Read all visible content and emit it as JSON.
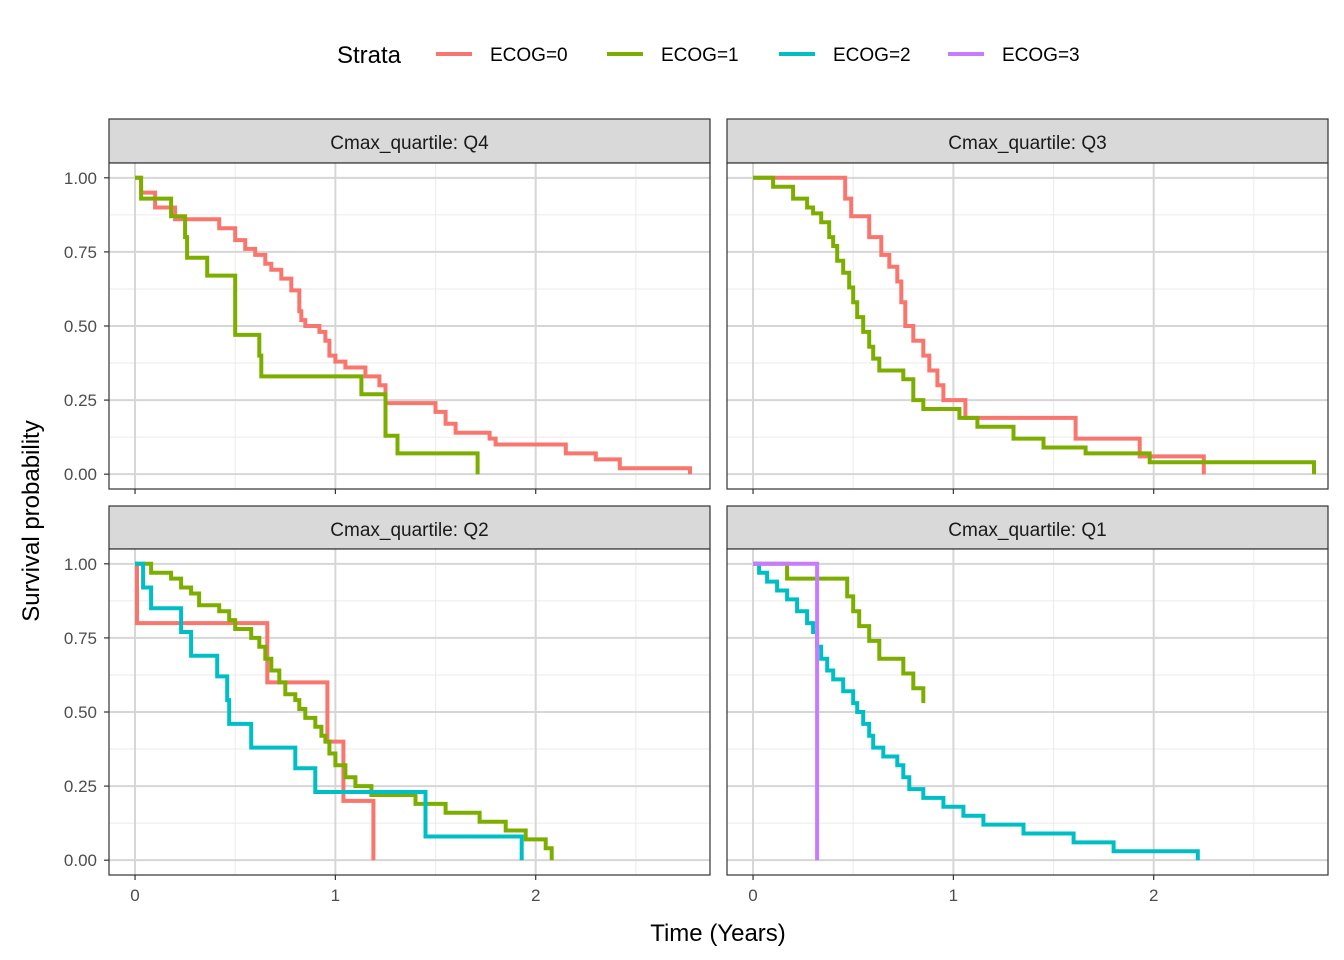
{
  "chart_data": {
    "type": "line",
    "step": true,
    "xlabel": "Time (Years)",
    "ylabel": "Survival probability",
    "xlim": [
      -0.13,
      2.87
    ],
    "ylim": [
      -0.05,
      1.05
    ],
    "x_ticks": [
      0,
      1,
      2
    ],
    "x_tick_labels": [
      "0",
      "1",
      "2"
    ],
    "y_ticks": [
      0,
      0.25,
      0.5,
      0.75,
      1
    ],
    "y_tick_labels": [
      "0.00",
      "0.25",
      "0.50",
      "0.75",
      "1.00"
    ],
    "grid": true,
    "legend": {
      "title": "Strata",
      "position": "top",
      "entries": [
        {
          "name": "ECOG=0",
          "color": "#F8766D"
        },
        {
          "name": "ECOG=1",
          "color": "#7CAE00"
        },
        {
          "name": "ECOG=2",
          "color": "#00BFC4"
        },
        {
          "name": "ECOG=3",
          "color": "#C77CFF"
        }
      ]
    },
    "facets": [
      {
        "label": "Cmax_quartile: Q4",
        "series": [
          {
            "name": "ECOG=0",
            "color": "#F8766D",
            "points": [
              [
                0,
                1.0
              ],
              [
                0.03,
                0.95
              ],
              [
                0.1,
                0.9
              ],
              [
                0.2,
                0.86
              ],
              [
                0.42,
                0.83
              ],
              [
                0.5,
                0.79
              ],
              [
                0.55,
                0.76
              ],
              [
                0.6,
                0.74
              ],
              [
                0.65,
                0.71
              ],
              [
                0.68,
                0.69
              ],
              [
                0.73,
                0.66
              ],
              [
                0.78,
                0.62
              ],
              [
                0.82,
                0.55
              ],
              [
                0.83,
                0.52
              ],
              [
                0.85,
                0.5
              ],
              [
                0.92,
                0.48
              ],
              [
                0.95,
                0.45
              ],
              [
                0.97,
                0.4
              ],
              [
                1.0,
                0.38
              ],
              [
                1.05,
                0.36
              ],
              [
                1.15,
                0.33
              ],
              [
                1.22,
                0.3
              ],
              [
                1.25,
                0.24
              ],
              [
                1.5,
                0.21
              ],
              [
                1.55,
                0.17
              ],
              [
                1.6,
                0.14
              ],
              [
                1.77,
                0.12
              ],
              [
                1.8,
                0.1
              ],
              [
                2.15,
                0.07
              ],
              [
                2.3,
                0.05
              ],
              [
                2.42,
                0.02
              ],
              [
                2.77,
                0.0
              ]
            ]
          },
          {
            "name": "ECOG=1",
            "color": "#7CAE00",
            "points": [
              [
                0,
                1.0
              ],
              [
                0.03,
                0.93
              ],
              [
                0.18,
                0.87
              ],
              [
                0.25,
                0.8
              ],
              [
                0.26,
                0.73
              ],
              [
                0.36,
                0.67
              ],
              [
                0.5,
                0.6
              ],
              [
                0.5,
                0.47
              ],
              [
                0.62,
                0.4
              ],
              [
                0.63,
                0.33
              ],
              [
                1.13,
                0.27
              ],
              [
                1.25,
                0.2
              ],
              [
                1.25,
                0.13
              ],
              [
                1.31,
                0.07
              ],
              [
                1.71,
                0.0
              ]
            ]
          }
        ]
      },
      {
        "label": "Cmax_quartile: Q3",
        "series": [
          {
            "name": "ECOG=0",
            "color": "#F8766D",
            "points": [
              [
                0,
                1.0
              ],
              [
                0.46,
                0.93
              ],
              [
                0.49,
                0.87
              ],
              [
                0.58,
                0.8
              ],
              [
                0.64,
                0.74
              ],
              [
                0.68,
                0.7
              ],
              [
                0.72,
                0.65
              ],
              [
                0.74,
                0.58
              ],
              [
                0.76,
                0.5
              ],
              [
                0.8,
                0.45
              ],
              [
                0.85,
                0.4
              ],
              [
                0.88,
                0.35
              ],
              [
                0.92,
                0.3
              ],
              [
                0.95,
                0.25
              ],
              [
                1.06,
                0.19
              ],
              [
                1.61,
                0.12
              ],
              [
                1.93,
                0.06
              ],
              [
                2.25,
                0.0
              ]
            ]
          },
          {
            "name": "ECOG=1",
            "color": "#7CAE00",
            "points": [
              [
                0,
                1.0
              ],
              [
                0.1,
                0.97
              ],
              [
                0.2,
                0.93
              ],
              [
                0.27,
                0.9
              ],
              [
                0.3,
                0.88
              ],
              [
                0.34,
                0.85
              ],
              [
                0.38,
                0.8
              ],
              [
                0.4,
                0.77
              ],
              [
                0.42,
                0.72
              ],
              [
                0.45,
                0.68
              ],
              [
                0.48,
                0.63
              ],
              [
                0.5,
                0.58
              ],
              [
                0.52,
                0.53
              ],
              [
                0.55,
                0.48
              ],
              [
                0.58,
                0.43
              ],
              [
                0.6,
                0.39
              ],
              [
                0.63,
                0.35
              ],
              [
                0.75,
                0.32
              ],
              [
                0.8,
                0.25
              ],
              [
                0.85,
                0.22
              ],
              [
                1.03,
                0.19
              ],
              [
                1.12,
                0.16
              ],
              [
                1.3,
                0.12
              ],
              [
                1.45,
                0.09
              ],
              [
                1.66,
                0.07
              ],
              [
                1.98,
                0.04
              ],
              [
                2.8,
                0.0
              ]
            ]
          }
        ]
      },
      {
        "label": "Cmax_quartile: Q2",
        "series": [
          {
            "name": "ECOG=0",
            "color": "#F8766D",
            "points": [
              [
                0,
                1.0
              ],
              [
                0.01,
                0.8
              ],
              [
                0.66,
                0.6
              ],
              [
                0.96,
                0.4
              ],
              [
                1.04,
                0.2
              ],
              [
                1.19,
                0.0
              ]
            ]
          },
          {
            "name": "ECOG=1",
            "color": "#7CAE00",
            "points": [
              [
                0,
                1.0
              ],
              [
                0.02,
                1.0
              ],
              [
                0.08,
                0.97
              ],
              [
                0.18,
                0.95
              ],
              [
                0.23,
                0.92
              ],
              [
                0.28,
                0.9
              ],
              [
                0.32,
                0.86
              ],
              [
                0.42,
                0.84
              ],
              [
                0.47,
                0.81
              ],
              [
                0.5,
                0.78
              ],
              [
                0.58,
                0.75
              ],
              [
                0.62,
                0.72
              ],
              [
                0.65,
                0.68
              ],
              [
                0.68,
                0.64
              ],
              [
                0.72,
                0.6
              ],
              [
                0.75,
                0.56
              ],
              [
                0.8,
                0.54
              ],
              [
                0.82,
                0.51
              ],
              [
                0.85,
                0.48
              ],
              [
                0.9,
                0.45
              ],
              [
                0.93,
                0.42
              ],
              [
                0.95,
                0.4
              ],
              [
                0.97,
                0.36
              ],
              [
                1.0,
                0.32
              ],
              [
                1.05,
                0.28
              ],
              [
                1.1,
                0.25
              ],
              [
                1.18,
                0.22
              ],
              [
                1.4,
                0.19
              ],
              [
                1.55,
                0.16
              ],
              [
                1.72,
                0.13
              ],
              [
                1.85,
                0.1
              ],
              [
                1.95,
                0.07
              ],
              [
                2.05,
                0.04
              ],
              [
                2.08,
                0.0
              ]
            ]
          },
          {
            "name": "ECOG=2",
            "color": "#00BFC4",
            "points": [
              [
                0,
                1.0
              ],
              [
                0.04,
                0.92
              ],
              [
                0.08,
                0.85
              ],
              [
                0.23,
                0.77
              ],
              [
                0.28,
                0.69
              ],
              [
                0.41,
                0.62
              ],
              [
                0.46,
                0.54
              ],
              [
                0.47,
                0.46
              ],
              [
                0.58,
                0.38
              ],
              [
                0.8,
                0.31
              ],
              [
                0.9,
                0.23
              ],
              [
                1.45,
                0.15
              ],
              [
                1.45,
                0.08
              ],
              [
                1.93,
                0.0
              ]
            ]
          }
        ]
      },
      {
        "label": "Cmax_quartile: Q1",
        "series": [
          {
            "name": "ECOG=1",
            "color": "#7CAE00",
            "points": [
              [
                0,
                1.0
              ],
              [
                0.17,
                0.95
              ],
              [
                0.47,
                0.89
              ],
              [
                0.5,
                0.84
              ],
              [
                0.53,
                0.79
              ],
              [
                0.58,
                0.74
              ],
              [
                0.63,
                0.68
              ],
              [
                0.75,
                0.63
              ],
              [
                0.8,
                0.58
              ],
              [
                0.85,
                0.53
              ],
              [
                0.8,
                0.53
              ],
              [
                0.8,
                0.53
              ],
              [
                0.8,
                0.53
              ],
              [
                0.8,
                0.53
              ],
              [
                0.8,
                0.53
              ],
              [
                0.8,
                0.53
              ],
              [
                0.8,
                0.53
              ],
              [
                0.8,
                0.53
              ],
              [
                0.8,
                0.53
              ],
              [
                0.8,
                0.53
              ],
              [
                0.8,
                0.53
              ],
              [
                0.8,
                0.53
              ],
              [
                0.8,
                0.53
              ],
              [
                0.8,
                0.53
              ],
              [
                0.8,
                0.53
              ],
              [
                0.8,
                0.53
              ],
              [
                0.8,
                0.53
              ],
              [
                0.8,
                0.53
              ],
              [
                0.8,
                0.53
              ],
              [
                0.8,
                0.53
              ]
            ]
          },
          {
            "name": "ECOG=2",
            "color": "#00BFC4",
            "points": [
              [
                0,
                1.0
              ],
              [
                0.03,
                0.97
              ],
              [
                0.07,
                0.94
              ],
              [
                0.12,
                0.91
              ],
              [
                0.17,
                0.88
              ],
              [
                0.22,
                0.84
              ],
              [
                0.27,
                0.8
              ],
              [
                0.3,
                0.77
              ],
              [
                0.32,
                0.72
              ],
              [
                0.34,
                0.68
              ],
              [
                0.37,
                0.64
              ],
              [
                0.4,
                0.61
              ],
              [
                0.45,
                0.57
              ],
              [
                0.5,
                0.53
              ],
              [
                0.52,
                0.5
              ],
              [
                0.55,
                0.46
              ],
              [
                0.58,
                0.42
              ],
              [
                0.6,
                0.38
              ],
              [
                0.65,
                0.35
              ],
              [
                0.72,
                0.32
              ],
              [
                0.75,
                0.28
              ],
              [
                0.78,
                0.24
              ],
              [
                0.85,
                0.21
              ],
              [
                0.95,
                0.18
              ],
              [
                1.05,
                0.15
              ],
              [
                1.15,
                0.12
              ],
              [
                1.35,
                0.09
              ],
              [
                1.6,
                0.06
              ],
              [
                1.8,
                0.03
              ],
              [
                2.22,
                0.0
              ]
            ]
          },
          {
            "name": "ECOG=3",
            "color": "#C77CFF",
            "points": [
              [
                0,
                1.0
              ],
              [
                0.32,
                0.0
              ]
            ]
          }
        ]
      }
    ]
  }
}
